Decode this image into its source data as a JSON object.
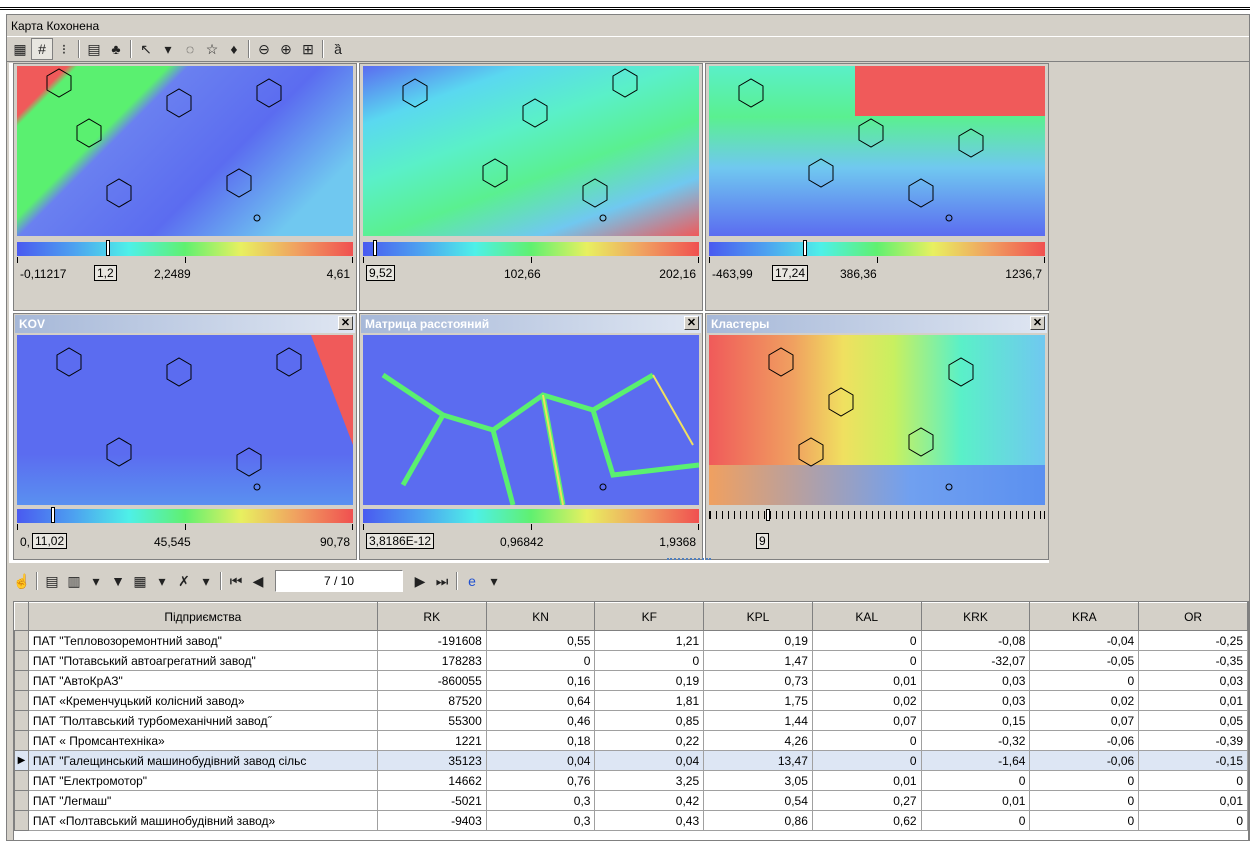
{
  "window": {
    "title": "Карта Кохонена"
  },
  "maps": [
    {
      "title": "",
      "scale": {
        "min": "-0,11217",
        "marker": "1,2",
        "mid": "2,2489",
        "max": "4,61"
      }
    },
    {
      "title": "",
      "scale": {
        "min": "9,52",
        "marker": "",
        "mid": "102,66",
        "max": "202,16"
      }
    },
    {
      "title": "",
      "scale": {
        "min": "-463,99",
        "marker": "17,24",
        "mid": "386,36",
        "max": "1236,7"
      }
    },
    {
      "title": "KOV",
      "scale": {
        "min": "0,",
        "marker": "11,02",
        "mid": "45,545",
        "max": "90,78"
      }
    },
    {
      "title": "Матрица расстояний",
      "scale": {
        "min": "",
        "marker": "3,8186E-12",
        "mid": "0,96842",
        "max": "1,9368"
      }
    },
    {
      "title": "Кластеры",
      "scale": {
        "min": "",
        "marker": "9",
        "mid": "",
        "max": ""
      }
    }
  ],
  "close_glyph": "✕",
  "navigator": {
    "position": "7 / 10"
  },
  "table": {
    "columns": [
      "Підприємства",
      "RK",
      "KN",
      "KF",
      "KPL",
      "KAL",
      "KRK",
      "KRA",
      "OR"
    ],
    "rows": [
      [
        "ПАТ \"Тепловозоремонтний завод\"",
        "-191608",
        "0,55",
        "1,21",
        "0,19",
        "0",
        "-0,08",
        "-0,04",
        "-0,25"
      ],
      [
        "ПАТ \"Потавський автоагрегатний завод\"",
        "178283",
        "0",
        "0",
        "1,47",
        "0",
        "-32,07",
        "-0,05",
        "-0,35"
      ],
      [
        "ПАТ \"АвтоКрАЗ\"",
        "-860055",
        "0,16",
        "0,19",
        "0,73",
        "0,01",
        "0,03",
        "0",
        "0,03"
      ],
      [
        "ПАТ «Кременчуцький колісний завод»",
        "87520",
        "0,64",
        "1,81",
        "1,75",
        "0,02",
        "0,03",
        "0,02",
        "0,01"
      ],
      [
        "ПАТ ˝Полтавський турбомеханічний завод˝",
        "55300",
        "0,46",
        "0,85",
        "1,44",
        "0,07",
        "0,15",
        "0,07",
        "0,05"
      ],
      [
        "ПАТ « Промсантехніка»",
        "1221",
        "0,18",
        "0,22",
        "4,26",
        "0",
        "-0,32",
        "-0,06",
        "-0,39"
      ],
      [
        "ПАТ \"Галещинський машинобудівний завод сільс",
        "35123",
        "0,04",
        "0,04",
        "13,47",
        "0",
        "-1,64",
        "-0,06",
        "-0,15"
      ],
      [
        "ПАТ \"Електромотор\"",
        "14662",
        "0,76",
        "3,25",
        "3,05",
        "0,01",
        "0",
        "0",
        "0"
      ],
      [
        "ПАТ \"Легмаш\"",
        "-5021",
        "0,3",
        "0,42",
        "0,54",
        "0,27",
        "0,01",
        "0",
        "0,01"
      ],
      [
        "ПАТ «Полтавський машинобудівний завод»",
        "-9403",
        "0,3",
        "0,43",
        "0,86",
        "0,62",
        "0",
        "0",
        "0"
      ]
    ],
    "selected_row": 6,
    "row_pointer": "▶"
  }
}
